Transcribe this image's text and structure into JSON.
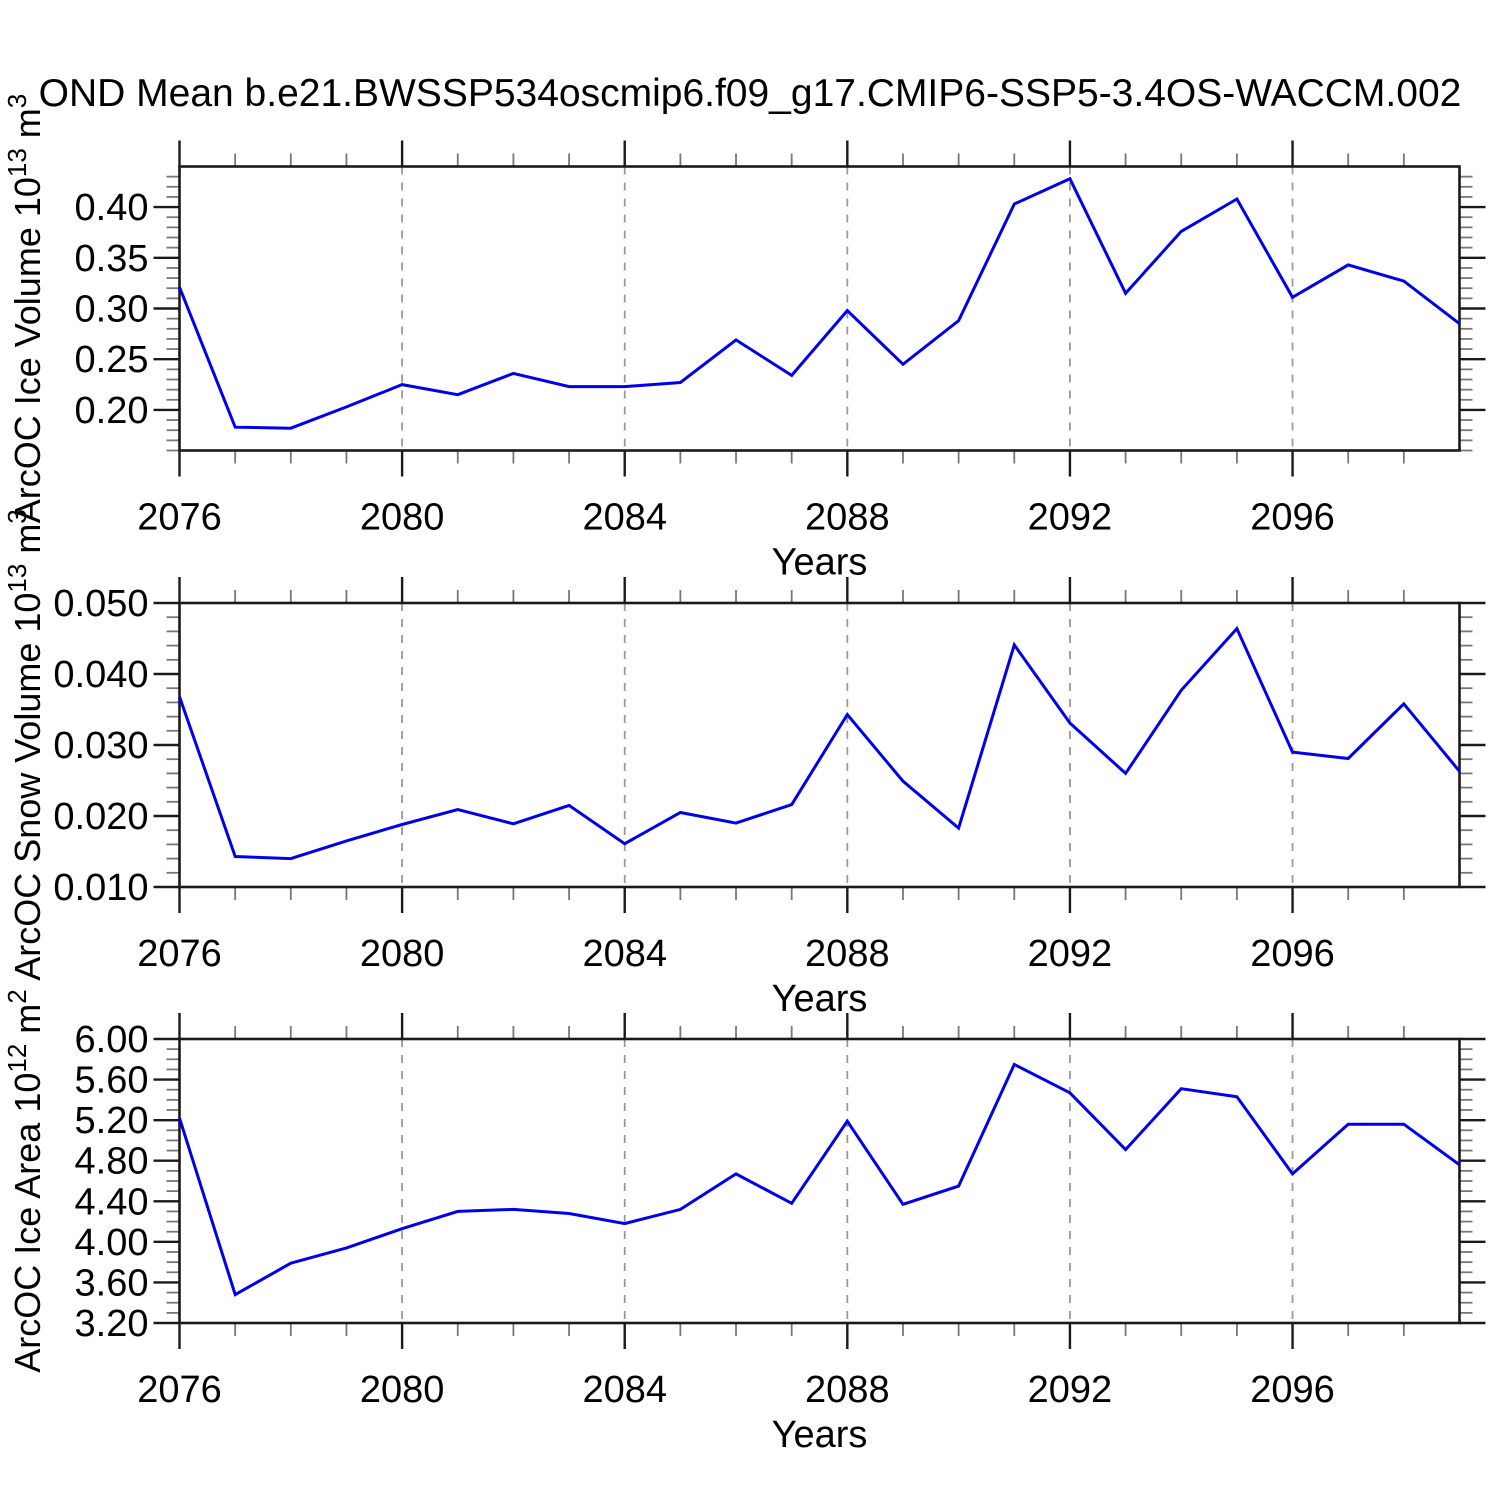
{
  "title": "OND Mean b.e21.BWSSP534oscmip6.f09_g17.CMIP6-SSP5-3.4OS-WACCM.002",
  "colors": {
    "line": "#0000EE",
    "frame": "#1a1a1a",
    "major_tick": "#1a1a1a",
    "minor_tick": "#777777",
    "gridline": "#9a9a9a",
    "text": "#000000"
  },
  "chart_data": [
    {
      "type": "line",
      "name": "arcoc-ice-volume",
      "ylabel": {
        "prefix": "ArcOC Ice Volume 10",
        "sup1": "13",
        "mid": " m",
        "sup2": "3"
      },
      "xlabel": "Years",
      "x": [
        2076,
        2077,
        2078,
        2079,
        2080,
        2081,
        2082,
        2083,
        2084,
        2085,
        2086,
        2087,
        2088,
        2089,
        2090,
        2091,
        2092,
        2093,
        2094,
        2095,
        2096,
        2097,
        2098,
        2099
      ],
      "values": [
        0.321,
        0.183,
        0.182,
        0.203,
        0.225,
        0.215,
        0.236,
        0.223,
        0.223,
        0.227,
        0.269,
        0.234,
        0.298,
        0.245,
        0.288,
        0.403,
        0.428,
        0.315,
        0.376,
        0.408,
        0.311,
        0.343,
        0.327,
        0.285
      ],
      "xlim": [
        2076,
        2099
      ],
      "ylim": [
        0.16,
        0.44
      ],
      "ytick_values": [
        0.4,
        0.35,
        0.3,
        0.25,
        0.2
      ],
      "ytick_labels": [
        "0.40",
        "0.35",
        "0.30",
        "0.25",
        "0.20"
      ],
      "ytick_minor_step": 0.01,
      "xtick_major": [
        2076,
        2080,
        2084,
        2088,
        2092,
        2096
      ],
      "xtick_labels": [
        "2076",
        "2080",
        "2084",
        "2088",
        "2092",
        "2096"
      ],
      "xtick_minor_step": 1,
      "gridlines_at": [
        2080,
        2084,
        2088,
        2092,
        2096
      ],
      "grid": "vertical-dashed",
      "legend": "none"
    },
    {
      "type": "line",
      "name": "arcoc-snow-volume",
      "ylabel": {
        "prefix": "ArcOC Snow Volume 10",
        "sup1": "13",
        "mid": " m",
        "sup2": "3"
      },
      "xlabel": "Years",
      "x": [
        2076,
        2077,
        2078,
        2079,
        2080,
        2081,
        2082,
        2083,
        2084,
        2085,
        2086,
        2087,
        2088,
        2089,
        2090,
        2091,
        2092,
        2093,
        2094,
        2095,
        2096,
        2097,
        2098,
        2099
      ],
      "values": [
        0.0368,
        0.0143,
        0.014,
        0.0165,
        0.0188,
        0.0209,
        0.0189,
        0.0215,
        0.0161,
        0.0205,
        0.019,
        0.0216,
        0.0343,
        0.0249,
        0.0183,
        0.0441,
        0.0331,
        0.026,
        0.0377,
        0.0464,
        0.029,
        0.0281,
        0.0358,
        0.0263
      ],
      "xlim": [
        2076,
        2099
      ],
      "ylim": [
        0.01,
        0.05
      ],
      "ytick_values": [
        0.05,
        0.04,
        0.03,
        0.02,
        0.01
      ],
      "ytick_labels": [
        "0.050",
        "0.040",
        "0.030",
        "0.020",
        "0.010"
      ],
      "ytick_minor_step": 0.002,
      "xtick_major": [
        2076,
        2080,
        2084,
        2088,
        2092,
        2096
      ],
      "xtick_labels": [
        "2076",
        "2080",
        "2084",
        "2088",
        "2092",
        "2096"
      ],
      "xtick_minor_step": 1,
      "gridlines_at": [
        2080,
        2084,
        2088,
        2092,
        2096
      ],
      "grid": "vertical-dashed",
      "legend": "none"
    },
    {
      "type": "line",
      "name": "arcoc-ice-area",
      "ylabel": {
        "prefix": "ArcOC Ice Area 10",
        "sup1": "12",
        "mid": " m",
        "sup2": "2"
      },
      "xlabel": "Years",
      "x": [
        2076,
        2077,
        2078,
        2079,
        2080,
        2081,
        2082,
        2083,
        2084,
        2085,
        2086,
        2087,
        2088,
        2089,
        2090,
        2091,
        2092,
        2093,
        2094,
        2095,
        2096,
        2097,
        2098,
        2099
      ],
      "values": [
        5.22,
        3.48,
        3.79,
        3.94,
        4.13,
        4.3,
        4.32,
        4.28,
        4.18,
        4.32,
        4.67,
        4.38,
        5.19,
        4.37,
        4.55,
        5.75,
        5.47,
        4.91,
        5.51,
        5.43,
        4.67,
        5.16,
        5.16,
        4.76
      ],
      "xlim": [
        2076,
        2099
      ],
      "ylim": [
        3.2,
        6.0
      ],
      "ytick_values": [
        6.0,
        5.6,
        5.2,
        4.8,
        4.4,
        4.0,
        3.6,
        3.2
      ],
      "ytick_labels": [
        "6.00",
        "5.60",
        "5.20",
        "4.80",
        "4.40",
        "4.00",
        "3.60",
        "3.20"
      ],
      "ytick_minor_step": 0.1,
      "xtick_major": [
        2076,
        2080,
        2084,
        2088,
        2092,
        2096
      ],
      "xtick_labels": [
        "2076",
        "2080",
        "2084",
        "2088",
        "2092",
        "2096"
      ],
      "xtick_minor_step": 1,
      "gridlines_at": [
        2080,
        2084,
        2088,
        2092,
        2096
      ],
      "grid": "vertical-dashed",
      "legend": "none"
    }
  ]
}
